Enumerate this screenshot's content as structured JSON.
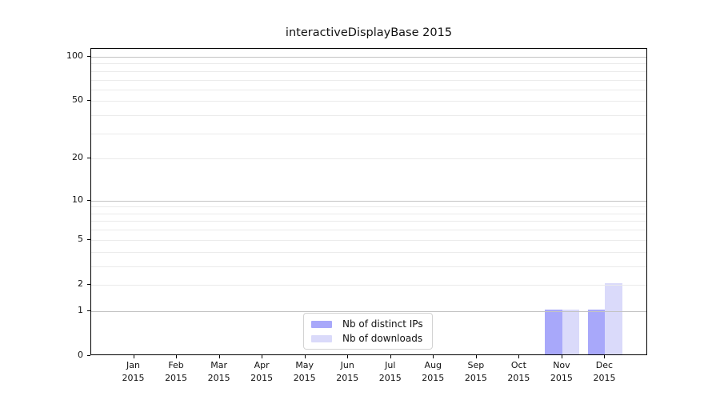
{
  "title": "interactiveDisplayBase 2015",
  "chart_data": {
    "type": "bar",
    "title": "interactiveDisplayBase 2015",
    "categories": [
      {
        "month": "Jan",
        "year": "2015"
      },
      {
        "month": "Feb",
        "year": "2015"
      },
      {
        "month": "Mar",
        "year": "2015"
      },
      {
        "month": "Apr",
        "year": "2015"
      },
      {
        "month": "May",
        "year": "2015"
      },
      {
        "month": "Jun",
        "year": "2015"
      },
      {
        "month": "Jul",
        "year": "2015"
      },
      {
        "month": "Aug",
        "year": "2015"
      },
      {
        "month": "Sep",
        "year": "2015"
      },
      {
        "month": "Oct",
        "year": "2015"
      },
      {
        "month": "Nov",
        "year": "2015"
      },
      {
        "month": "Dec",
        "year": "2015"
      }
    ],
    "series": [
      {
        "name": "Nb of distinct IPs",
        "color": "#a8a8fa",
        "values": [
          0,
          0,
          0,
          0,
          0,
          0,
          0,
          0,
          0,
          0,
          1,
          1
        ]
      },
      {
        "name": "Nb of downloads",
        "color": "#dadafa",
        "values": [
          0,
          0,
          0,
          0,
          0,
          0,
          0,
          0,
          0,
          0,
          1,
          2
        ]
      }
    ],
    "xlabel": "",
    "ylabel": "",
    "yscale": "log1p",
    "ylim": [
      0,
      113
    ],
    "yticks": [
      0,
      1,
      2,
      5,
      10,
      20,
      50,
      100
    ],
    "gridlines": {
      "major": [
        1,
        10,
        100
      ],
      "minor": [
        2,
        3,
        4,
        5,
        6,
        7,
        8,
        9,
        20,
        30,
        40,
        50,
        60,
        70,
        80,
        90
      ]
    },
    "grid": true,
    "legend_position": "lower center",
    "colors": {
      "axis": "#000000",
      "major_grid": "#c3c3c3",
      "minor_grid": "#ebebeb",
      "background": "#ffffff"
    }
  }
}
